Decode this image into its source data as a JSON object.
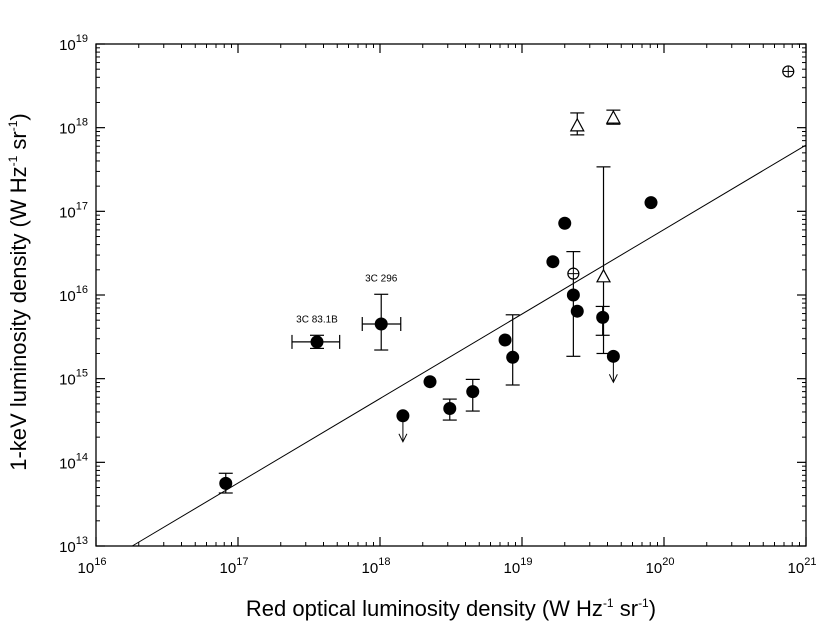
{
  "chart_data": {
    "type": "scatter",
    "title": "",
    "xlabel": "Red optical luminosity density (W Hz",
    "xlabel_sup": "-1",
    "xlabel_mid": " sr",
    "xlabel_sup2": "-1",
    "xlabel_end": ")",
    "ylabel": "1-keV luminosity density (W Hz",
    "ylabel_sup": "-1",
    "ylabel_mid": " sr",
    "ylabel_sup2": "-1",
    "ylabel_end": ")",
    "x_scale": "log",
    "y_scale": "log",
    "xlim": [
      1e+16,
      1e+21
    ],
    "ylim": [
      10000000000000.0,
      1e+19
    ],
    "x_tick_exponents": [
      16,
      17,
      18,
      19,
      20,
      21
    ],
    "y_tick_exponents": [
      13,
      14,
      15,
      16,
      17,
      18,
      19
    ],
    "tick_base": "10",
    "fit_line": {
      "x": [
        1.8e+16,
        1e+21
      ],
      "y": [
        10000000000000.0,
        6.2e+17
      ]
    },
    "series": [
      {
        "name": "filled",
        "marker": "filled-circle",
        "points": [
          {
            "x": 8.2e+16,
            "y": 56000000000000.0,
            "ylo": 43000000000000.0,
            "yhi": 74000000000000.0
          },
          {
            "x": 3.6e+17,
            "y": 2750000000000000.0,
            "ylo": 2300000000000000.0,
            "yhi": 3300000000000000.0,
            "xlo": 2.4e+17,
            "xhi": 5.2e+17,
            "label": "3C 83.1B"
          },
          {
            "x": 1.02e+18,
            "y": 4500000000000000.0,
            "ylo": 2200000000000000.0,
            "yhi": 1.02e+16,
            "xlo": 7.5e+17,
            "xhi": 1.4e+18,
            "label": "3C 296"
          },
          {
            "x": 2.25e+18,
            "y": 920000000000000.0
          },
          {
            "x": 3.1e+18,
            "y": 440000000000000.0,
            "ylo": 320000000000000.0,
            "yhi": 570000000000000.0
          },
          {
            "x": 4.5e+18,
            "y": 700000000000000.0,
            "ylo": 410000000000000.0,
            "yhi": 980000000000000.0
          },
          {
            "x": 7.6e+18,
            "y": 2900000000000000.0
          },
          {
            "x": 8.6e+18,
            "y": 1800000000000000.0,
            "ylo": 840000000000000.0,
            "yhi": 5800000000000000.0
          },
          {
            "x": 1.65e+19,
            "y": 2.5e+16
          },
          {
            "x": 2e+19,
            "y": 7.2e+16
          },
          {
            "x": 2.3e+19,
            "y": 1e+16,
            "ylo": 1850000000000000.0,
            "yhi": 3.3e+16
          },
          {
            "x": 2.45e+19,
            "y": 6400000000000000.0
          },
          {
            "x": 3.7e+19,
            "y": 5400000000000000.0,
            "ylo": 3300000000000000.0,
            "yhi": 7300000000000000.0
          },
          {
            "x": 8.1e+19,
            "y": 1.27e+17
          }
        ]
      },
      {
        "name": "upper-limit",
        "marker": "filled-circle-arrow",
        "points": [
          {
            "x": 1.45e+18,
            "y": 360000000000000.0
          },
          {
            "x": 4.4e+19,
            "y": 1850000000000000.0
          }
        ]
      },
      {
        "name": "open-triangle",
        "marker": "open-triangle",
        "points": [
          {
            "x": 2.45e+19,
            "y": 1.05e+18,
            "ylo": 8.2e+17,
            "yhi": 1.5e+18
          },
          {
            "x": 4.4e+19,
            "y": 1.3e+18,
            "ylo": 1.1e+18,
            "yhi": 1.62e+18
          },
          {
            "x": 3.75e+19,
            "y": 1.65e+16,
            "ylo": 2000000000000000.0,
            "yhi": 3.4e+17
          }
        ]
      },
      {
        "name": "open-crossed-circle",
        "marker": "crossed-circle",
        "points": [
          {
            "x": 2.3e+19,
            "y": 1.8e+16
          },
          {
            "x": 7.5e+20,
            "y": 4.7e+18
          }
        ]
      }
    ]
  }
}
